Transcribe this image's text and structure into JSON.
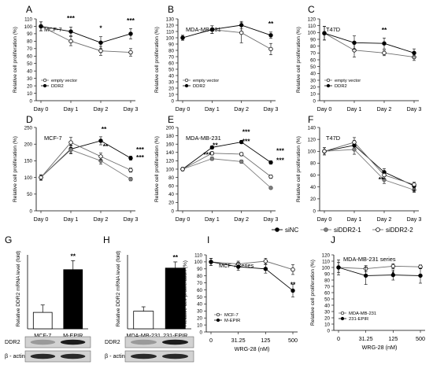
{
  "panel_letters": [
    "A",
    "B",
    "C",
    "D",
    "E",
    "F",
    "G",
    "H",
    "I",
    "J"
  ],
  "shared_legend": {
    "items": [
      "siNC",
      "siDDR2-1",
      "siDDR2-2"
    ]
  },
  "blots": {
    "G": {
      "rows": [
        "DDR2",
        "β - actin"
      ]
    },
    "H": {
      "rows": [
        "DDR2",
        "β - actin"
      ]
    }
  },
  "chart_data": [
    {
      "letter": "A",
      "type": "line",
      "title": "MCF-7",
      "ylabel": "Relative cell proliferation (%)",
      "xlabel": "",
      "categories": [
        "Day 0",
        "Day 1",
        "Day 2",
        "Day 3"
      ],
      "ylim": [
        0,
        110
      ],
      "yticks": [
        0,
        10,
        20,
        30,
        40,
        50,
        60,
        70,
        80,
        90,
        100,
        110
      ],
      "series": [
        {
          "name": "empty vector",
          "marker": "open",
          "values": [
            100,
            80,
            67,
            65
          ],
          "err": [
            6,
            6,
            6,
            5
          ]
        },
        {
          "name": "DDR2",
          "marker": "filled",
          "values": [
            100,
            93,
            78,
            90
          ],
          "err": [
            6,
            6,
            8,
            7
          ]
        }
      ],
      "annotations": [
        {
          "x": 1,
          "text": "***"
        },
        {
          "x": 2,
          "text": "*"
        },
        {
          "x": 3,
          "text": "***"
        }
      ],
      "legend": "bottom-left"
    },
    {
      "letter": "B",
      "type": "line",
      "title": "MDA-MB-231",
      "ylabel": "Relative cell proliferation (%)",
      "xlabel": "",
      "categories": [
        "Day 0",
        "Day 1",
        "Day 2",
        "Day 3"
      ],
      "ylim": [
        0,
        130
      ],
      "yticks": [
        0,
        10,
        20,
        30,
        40,
        50,
        60,
        70,
        80,
        90,
        100,
        110,
        120,
        130
      ],
      "series": [
        {
          "name": "empty vector",
          "marker": "open",
          "values": [
            100,
            113,
            108,
            82
          ],
          "err": [
            4,
            6,
            16,
            9
          ]
        },
        {
          "name": "DDR2",
          "marker": "filled",
          "values": [
            100,
            113,
            120,
            104
          ],
          "err": [
            4,
            6,
            6,
            5
          ]
        }
      ],
      "annotations": [
        {
          "x": 3,
          "text": "**"
        }
      ],
      "legend": "bottom-left"
    },
    {
      "letter": "C",
      "type": "line",
      "title": "T47D",
      "ylabel": "Relative cell proliferation (%)",
      "xlabel": "",
      "categories": [
        "Day 0",
        "Day 1",
        "Day 2",
        "Day 3"
      ],
      "ylim": [
        0,
        120
      ],
      "yticks": [
        0,
        10,
        20,
        30,
        40,
        50,
        60,
        70,
        80,
        90,
        100,
        110,
        120
      ],
      "series": [
        {
          "name": "empty vector",
          "marker": "open",
          "values": [
            99,
            74,
            70,
            64
          ],
          "err": [
            10,
            10,
            4,
            5
          ]
        },
        {
          "name": "DDR2",
          "marker": "filled",
          "values": [
            99,
            85,
            84,
            70
          ],
          "err": [
            10,
            10,
            8,
            6
          ]
        }
      ],
      "annotations": [
        {
          "x": 2,
          "text": "**"
        }
      ],
      "legend": "bottom-left"
    },
    {
      "letter": "D",
      "type": "line",
      "title": "MCF-7",
      "ylabel": "Relative cell proliferation (%)",
      "xlabel": "",
      "categories": [
        "Day 0",
        "Day 1",
        "Day 2",
        "Day 3"
      ],
      "ylim": [
        0,
        250
      ],
      "yticks": [
        0,
        50,
        100,
        150,
        200,
        250
      ],
      "series": [
        {
          "name": "siNC",
          "marker": "filled",
          "values": [
            100,
            185,
            210,
            158
          ],
          "err": [
            8,
            12,
            12,
            6
          ]
        },
        {
          "name": "siDDR2-1",
          "marker": "gray",
          "values": [
            100,
            183,
            150,
            95
          ],
          "err": [
            8,
            12,
            10,
            5
          ]
        },
        {
          "name": "siDDR2-2",
          "marker": "open",
          "values": [
            100,
            205,
            163,
            122
          ],
          "err": [
            8,
            15,
            10,
            6
          ]
        }
      ],
      "annotations": [
        {
          "x": 2,
          "text": "**"
        },
        {
          "x": 2,
          "text": "**"
        },
        {
          "x": 3,
          "text": "***"
        },
        {
          "x": 3,
          "text": "***"
        }
      ],
      "legend": "none"
    },
    {
      "letter": "E",
      "type": "line",
      "title": "MDA-MB-231",
      "ylabel": "Relative cell proliferation (%)",
      "xlabel": "",
      "categories": [
        "Day 0",
        "Day 1",
        "Day 2",
        "Day 3"
      ],
      "ylim": [
        0,
        200
      ],
      "yticks": [
        0,
        20,
        40,
        60,
        80,
        100,
        120,
        140,
        160,
        180,
        200
      ],
      "series": [
        {
          "name": "siNC",
          "marker": "filled",
          "values": [
            100,
            152,
            165,
            116
          ],
          "err": [
            4,
            4,
            4,
            4
          ]
        },
        {
          "name": "siDDR2-1",
          "marker": "gray",
          "values": [
            100,
            125,
            118,
            55
          ],
          "err": [
            4,
            4,
            4,
            3
          ]
        },
        {
          "name": "siDDR2-2",
          "marker": "open",
          "values": [
            100,
            138,
            136,
            82
          ],
          "err": [
            4,
            4,
            4,
            4
          ]
        }
      ],
      "annotations": [
        {
          "x": 1,
          "text": "**"
        },
        {
          "x": 1,
          "text": "***"
        },
        {
          "x": 2,
          "text": "***"
        },
        {
          "x": 2,
          "text": "***"
        },
        {
          "x": 3,
          "text": "***"
        },
        {
          "x": 3,
          "text": "***"
        }
      ],
      "legend": "none"
    },
    {
      "letter": "F",
      "type": "line",
      "title": "T47D",
      "ylabel": "Relative cell proliferation (%)",
      "xlabel": "",
      "categories": [
        "Day 0",
        "Day 1",
        "Day 2",
        "Day 3"
      ],
      "ylim": [
        0,
        140
      ],
      "yticks": [
        0,
        20,
        40,
        60,
        80,
        100,
        120,
        140
      ],
      "series": [
        {
          "name": "siNC",
          "marker": "filled",
          "values": [
            100,
            110,
            65,
            42
          ],
          "err": [
            6,
            8,
            6,
            4
          ]
        },
        {
          "name": "siDDR2-1",
          "marker": "gray",
          "values": [
            100,
            103,
            52,
            35
          ],
          "err": [
            6,
            8,
            6,
            4
          ]
        },
        {
          "name": "siDDR2-2",
          "marker": "open",
          "values": [
            100,
            115,
            60,
            44
          ],
          "err": [
            6,
            8,
            6,
            4
          ]
        }
      ],
      "annotations": [
        {
          "x": 2,
          "text": "**"
        },
        {
          "x": 3,
          "text": "*"
        }
      ],
      "legend": "none"
    },
    {
      "letter": "G",
      "type": "bar",
      "title": "",
      "ylabel": "Relative DDR2 mRNA level (fold)",
      "xlabel": "",
      "categories": [
        "MCF-7",
        "M-EPIR"
      ],
      "values": [
        1.0,
        3.6
      ],
      "err": [
        0.45,
        0.55
      ],
      "colors": [
        "#ffffff",
        "#000000"
      ],
      "ylim": [
        0,
        4.5
      ],
      "annotations": [
        {
          "x": 1,
          "text": "**"
        }
      ]
    },
    {
      "letter": "H",
      "type": "bar",
      "title": "",
      "ylabel": "Relative DDR2 mRNA level (fold)",
      "xlabel": "",
      "categories": [
        "MDA-MB-231",
        "231-EPIR"
      ],
      "values": [
        1.0,
        3.45
      ],
      "err": [
        0.25,
        0.35
      ],
      "colors": [
        "#ffffff",
        "#000000"
      ],
      "ylim": [
        0,
        4.2
      ],
      "annotations": [
        {
          "x": 1,
          "text": "**"
        }
      ]
    },
    {
      "letter": "I",
      "type": "line",
      "title": "MCF-7 series",
      "ylabel": "Relative cell proliferation (%)",
      "xlabel": "WRG-28 (nM)",
      "categories": [
        "0",
        "31.25",
        "125",
        "500"
      ],
      "ylim": [
        0,
        110
      ],
      "yticks": [
        0,
        10,
        20,
        30,
        40,
        50,
        60,
        70,
        80,
        90,
        100,
        110
      ],
      "series": [
        {
          "name": "MCF-7",
          "marker": "open",
          "values": [
            100,
            97,
            101,
            89
          ],
          "err": [
            5,
            4,
            4,
            7
          ]
        },
        {
          "name": "M-EPIR",
          "marker": "filled",
          "values": [
            100,
            93,
            90,
            59
          ],
          "err": [
            5,
            5,
            6,
            9
          ]
        }
      ],
      "annotations": [
        {
          "x": 2,
          "text": "*"
        },
        {
          "x": 3,
          "text": "**"
        }
      ],
      "legend": "bottom-left"
    },
    {
      "letter": "J",
      "type": "line",
      "title": "MDA-MB-231 series",
      "ylabel": "Relative cell proliferation (%)",
      "xlabel": "WRG-28 (nM)",
      "categories": [
        "0",
        "31.25",
        "125",
        "500"
      ],
      "ylim": [
        0,
        120
      ],
      "yticks": [
        0,
        10,
        20,
        30,
        40,
        50,
        60,
        70,
        80,
        90,
        100,
        110,
        120
      ],
      "series": [
        {
          "name": "MDA-MB-231",
          "marker": "open",
          "values": [
            100,
            98,
            102,
            101
          ],
          "err": [
            8,
            5,
            4,
            3
          ]
        },
        {
          "name": "231-EPIR",
          "marker": "filled",
          "values": [
            100,
            87,
            88,
            87
          ],
          "err": [
            12,
            14,
            8,
            12
          ]
        }
      ],
      "annotations": [
        {
          "x": 2,
          "text": "*"
        }
      ],
      "legend": "bottom-left"
    }
  ]
}
